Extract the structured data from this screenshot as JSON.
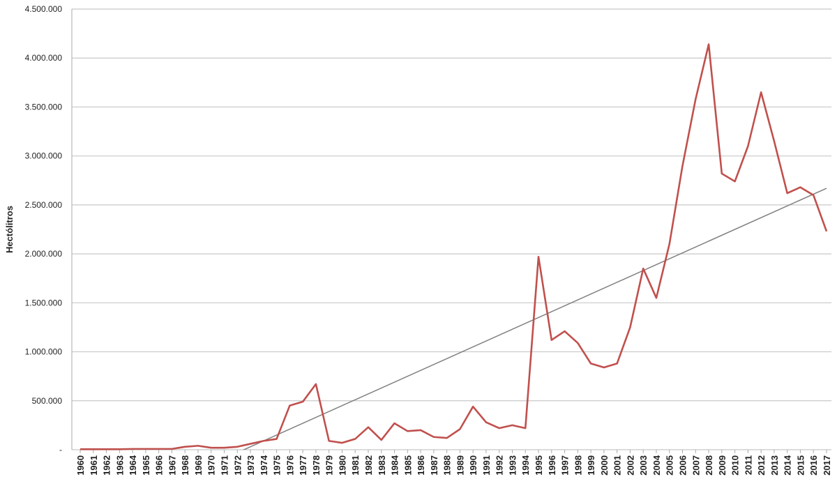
{
  "chart_data": {
    "type": "line",
    "y_label": "Hectólitros",
    "categories": [
      "1960",
      "1961",
      "1962",
      "1963",
      "1964",
      "1965",
      "1966",
      "1967",
      "1968",
      "1969",
      "1970",
      "1971",
      "1972",
      "1973",
      "1974",
      "1975",
      "1976",
      "1977",
      "1978",
      "1979",
      "1980",
      "1981",
      "1982",
      "1983",
      "1984",
      "1985",
      "1986",
      "1987",
      "1988",
      "1989",
      "1990",
      "1991",
      "1992",
      "1993",
      "1994",
      "1995",
      "1996",
      "1997",
      "1998",
      "1999",
      "2000",
      "2001",
      "2002",
      "2003",
      "2004",
      "2005",
      "2006",
      "2007",
      "2008",
      "2009",
      "2010",
      "2011",
      "2012",
      "2013",
      "2014",
      "2015",
      "2016",
      "2017"
    ],
    "values": [
      5000,
      5000,
      5000,
      5000,
      8000,
      8000,
      8000,
      8000,
      30000,
      40000,
      20000,
      20000,
      30000,
      60000,
      90000,
      110000,
      450000,
      490000,
      670000,
      90000,
      70000,
      110000,
      230000,
      100000,
      270000,
      190000,
      200000,
      130000,
      120000,
      210000,
      440000,
      280000,
      220000,
      250000,
      220000,
      1970000,
      1120000,
      1210000,
      1090000,
      880000,
      840000,
      880000,
      1250000,
      1850000,
      1550000,
      2100000,
      2900000,
      3580000,
      4140000,
      2820000,
      2740000,
      3100000,
      3650000,
      3150000,
      2620000,
      2680000,
      2600000,
      2230000
    ],
    "color": "#c0504d",
    "trend": {
      "start": -750000,
      "end": 2670000,
      "color": "#808080"
    },
    "ylim": [
      0,
      4500000
    ],
    "yticks": [
      {
        "value": 0,
        "label": "-"
      },
      {
        "value": 500000,
        "label": "500.000"
      },
      {
        "value": 1000000,
        "label": "1.000.000"
      },
      {
        "value": 1500000,
        "label": "1.500.000"
      },
      {
        "value": 2000000,
        "label": "2.000.000"
      },
      {
        "value": 2500000,
        "label": "2.500.000"
      },
      {
        "value": 3000000,
        "label": "3.000.000"
      },
      {
        "value": 3500000,
        "label": "3.500.000"
      },
      {
        "value": 4000000,
        "label": "4.000.000"
      },
      {
        "value": 4500000,
        "label": "4.500.000"
      }
    ],
    "grid": true
  }
}
